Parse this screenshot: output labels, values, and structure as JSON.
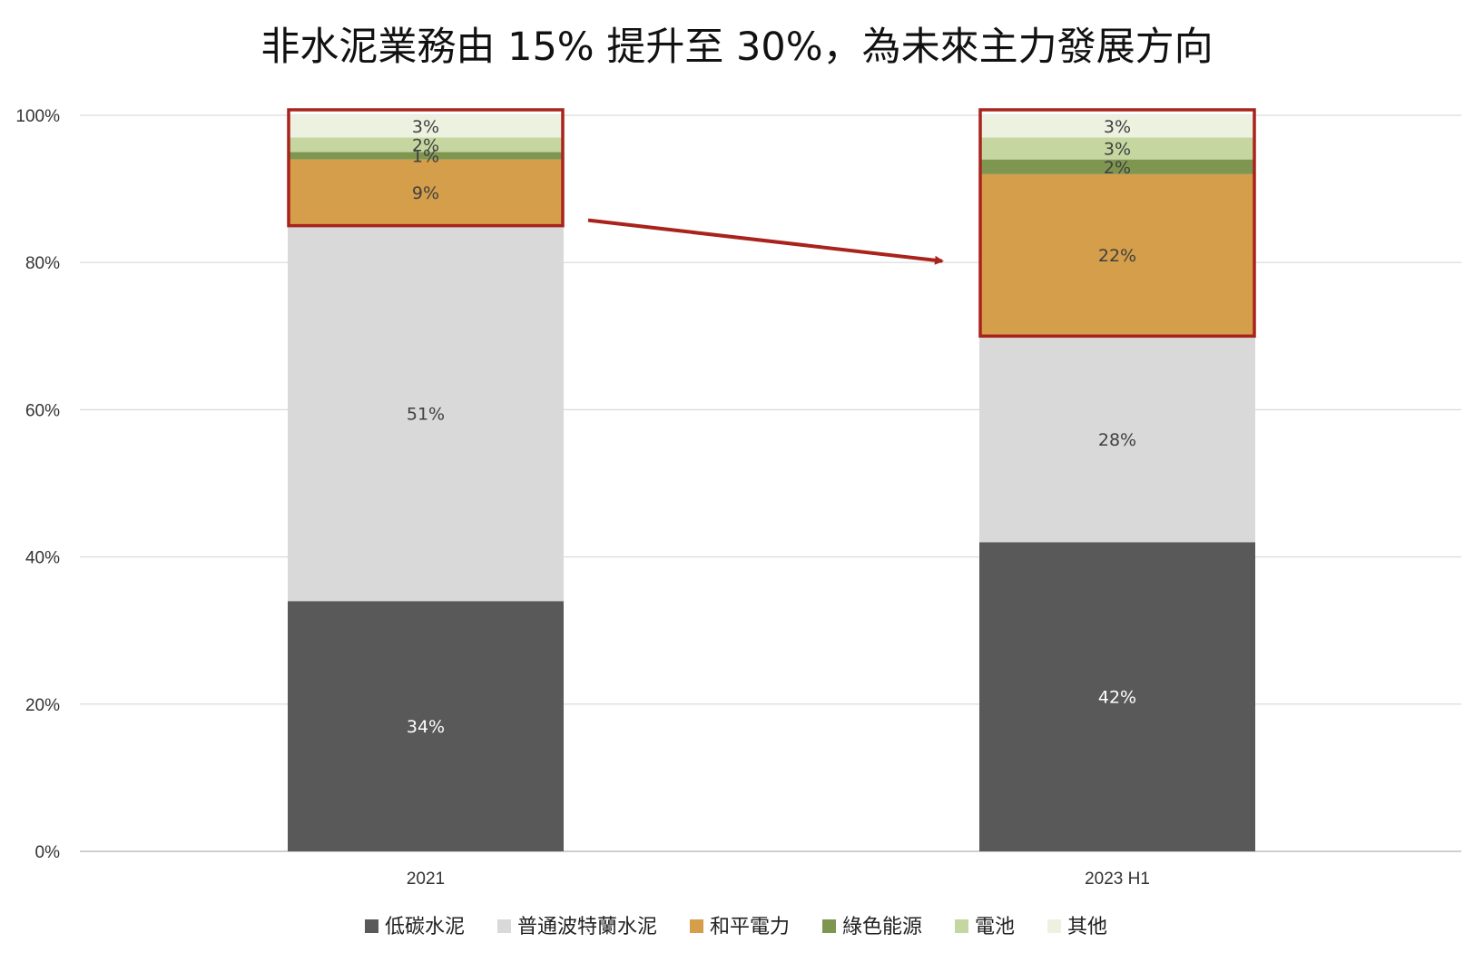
{
  "chart_data": {
    "type": "bar",
    "stacked": true,
    "title": "非水泥業務由 15% 提升至 30%，為未來主力發展方向",
    "categories": [
      "2021",
      "2023 H1"
    ],
    "ylim": [
      0,
      100
    ],
    "y_ticks": [
      "0%",
      "20%",
      "40%",
      "60%",
      "80%",
      "100%"
    ],
    "y_tick_values": [
      0,
      20,
      40,
      60,
      80,
      100
    ],
    "grid": true,
    "legend_position": "bottom",
    "series": [
      {
        "name": "低碳水泥",
        "color": "#595959",
        "label_color": "#ffffff",
        "values": [
          34,
          42
        ],
        "labels": [
          "34%",
          "42%"
        ]
      },
      {
        "name": "普通波特蘭水泥",
        "color": "#d9d9d9",
        "label_color": "#404040",
        "values": [
          51,
          28
        ],
        "labels": [
          "51%",
          "28%"
        ]
      },
      {
        "name": "和平電力",
        "color": "#d49e4a",
        "label_color": "#404040",
        "values": [
          9,
          22
        ],
        "labels": [
          "9%",
          "22%"
        ]
      },
      {
        "name": "綠色能源",
        "color": "#7f9650",
        "label_color": "#404040",
        "values": [
          1,
          2
        ],
        "labels": [
          "1%",
          "2%"
        ]
      },
      {
        "name": "電池",
        "color": "#c6d6a0",
        "label_color": "#404040",
        "values": [
          2,
          3
        ],
        "labels": [
          "2%",
          "3%"
        ]
      },
      {
        "name": "其他",
        "color": "#edf1df",
        "label_color": "#404040",
        "values": [
          3,
          3
        ],
        "labels": [
          "3%",
          "3%"
        ]
      }
    ],
    "annotations": {
      "highlight_color": "#a8231c",
      "arrow_color": "#a8231c"
    }
  }
}
